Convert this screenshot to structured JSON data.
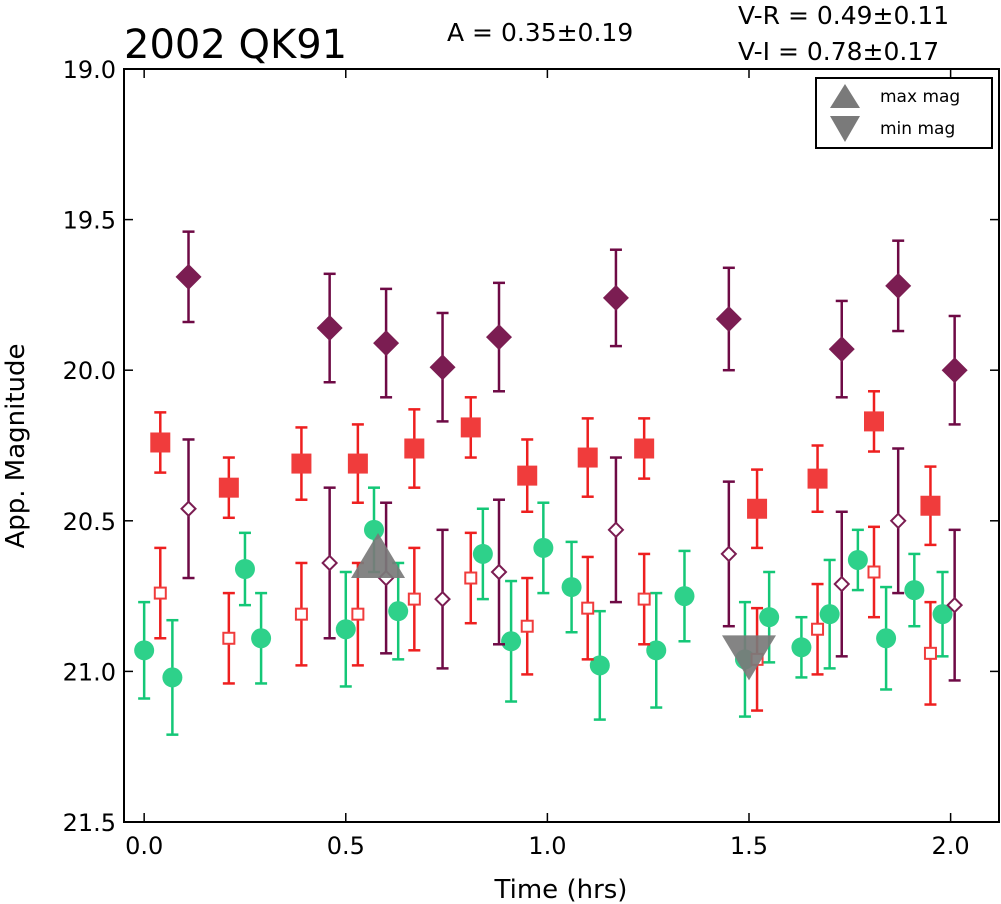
{
  "chart_data": {
    "type": "scatter",
    "title": "2002 QK91",
    "stats": {
      "amplitude": "A  = 0.35±0.19",
      "v_r": "V-R = 0.49±0.11",
      "v_i": "V-I  = 0.78±0.17"
    },
    "xlabel": "Time (hrs)",
    "ylabel": "App. Magnitude",
    "xlim": [
      -0.05,
      2.12
    ],
    "ylim": [
      21.5,
      19.0
    ],
    "y_inverted": true,
    "xticks": [
      "0.0",
      "0.5",
      "1.0",
      "1.5",
      "2.0"
    ],
    "xtick_values": [
      0.0,
      0.5,
      1.0,
      1.5,
      2.0
    ],
    "yticks": [
      "19.0",
      "19.5",
      "20.0",
      "20.5",
      "21.0",
      "21.5"
    ],
    "ytick_values": [
      19.0,
      19.5,
      20.0,
      20.5,
      21.0,
      21.5
    ],
    "legend": {
      "position": "top-right",
      "entries": [
        {
          "label": "max mag",
          "marker": "triangle-up"
        },
        {
          "label": "min mag",
          "marker": "triangle-down"
        }
      ]
    },
    "series": [
      {
        "marker": "diamond",
        "color": "#7b1d52",
        "err_color": "#6e0a45",
        "points": [
          {
            "x": 0.11,
            "y": 19.69,
            "err": 0.15
          },
          {
            "x": 0.46,
            "y": 19.86,
            "err": 0.18
          },
          {
            "x": 0.6,
            "y": 19.91,
            "err": 0.18
          },
          {
            "x": 0.74,
            "y": 19.99,
            "err": 0.18
          },
          {
            "x": 0.88,
            "y": 19.89,
            "err": 0.18
          },
          {
            "x": 1.17,
            "y": 19.76,
            "err": 0.16
          },
          {
            "x": 1.45,
            "y": 19.83,
            "err": 0.17
          },
          {
            "x": 1.73,
            "y": 19.93,
            "err": 0.16
          },
          {
            "x": 1.87,
            "y": 19.72,
            "err": 0.15
          },
          {
            "x": 2.01,
            "y": 20.0,
            "err": 0.18
          }
        ]
      },
      {
        "marker": "square",
        "color": "#f03c3c",
        "err_color": "#ee1f1f",
        "points": [
          {
            "x": 0.04,
            "y": 20.24,
            "err": 0.1
          },
          {
            "x": 0.21,
            "y": 20.39,
            "err": 0.1
          },
          {
            "x": 0.39,
            "y": 20.31,
            "err": 0.12
          },
          {
            "x": 0.53,
            "y": 20.31,
            "err": 0.13
          },
          {
            "x": 0.67,
            "y": 20.26,
            "err": 0.13
          },
          {
            "x": 0.81,
            "y": 20.19,
            "err": 0.1
          },
          {
            "x": 0.95,
            "y": 20.35,
            "err": 0.12
          },
          {
            "x": 1.1,
            "y": 20.29,
            "err": 0.13
          },
          {
            "x": 1.24,
            "y": 20.26,
            "err": 0.1
          },
          {
            "x": 1.52,
            "y": 20.46,
            "err": 0.13
          },
          {
            "x": 1.67,
            "y": 20.36,
            "err": 0.11
          },
          {
            "x": 1.81,
            "y": 20.17,
            "err": 0.1
          },
          {
            "x": 1.95,
            "y": 20.45,
            "err": 0.13
          }
        ]
      },
      {
        "marker": "diamond-open",
        "color": "#7b1d52",
        "err_color": "#6e0a45",
        "points": [
          {
            "x": 0.11,
            "y": 20.46,
            "err": 0.23
          },
          {
            "x": 0.46,
            "y": 20.64,
            "err": 0.25
          },
          {
            "x": 0.6,
            "y": 20.69,
            "err": 0.25
          },
          {
            "x": 0.74,
            "y": 20.76,
            "err": 0.23
          },
          {
            "x": 0.88,
            "y": 20.67,
            "err": 0.24
          },
          {
            "x": 1.17,
            "y": 20.53,
            "err": 0.24
          },
          {
            "x": 1.45,
            "y": 20.61,
            "err": 0.24
          },
          {
            "x": 1.73,
            "y": 20.71,
            "err": 0.24
          },
          {
            "x": 1.87,
            "y": 20.5,
            "err": 0.24
          },
          {
            "x": 2.01,
            "y": 20.78,
            "err": 0.25
          }
        ]
      },
      {
        "marker": "square-open",
        "color": "#f03c3c",
        "err_color": "#ee1f1f",
        "points": [
          {
            "x": 0.04,
            "y": 20.74,
            "err": 0.15
          },
          {
            "x": 0.21,
            "y": 20.89,
            "err": 0.15
          },
          {
            "x": 0.39,
            "y": 20.81,
            "err": 0.17
          },
          {
            "x": 0.53,
            "y": 20.81,
            "err": 0.17
          },
          {
            "x": 0.67,
            "y": 20.76,
            "err": 0.17
          },
          {
            "x": 0.81,
            "y": 20.69,
            "err": 0.15
          },
          {
            "x": 0.95,
            "y": 20.85,
            "err": 0.16
          },
          {
            "x": 1.1,
            "y": 20.79,
            "err": 0.17
          },
          {
            "x": 1.24,
            "y": 20.76,
            "err": 0.15
          },
          {
            "x": 1.52,
            "y": 20.96,
            "err": 0.17
          },
          {
            "x": 1.67,
            "y": 20.86,
            "err": 0.15
          },
          {
            "x": 1.81,
            "y": 20.67,
            "err": 0.15
          },
          {
            "x": 1.95,
            "y": 20.94,
            "err": 0.17
          }
        ]
      },
      {
        "marker": "circle",
        "color": "#2ed18a",
        "err_color": "#14c777",
        "points": [
          {
            "x": 0.0,
            "y": 20.93,
            "err": 0.16
          },
          {
            "x": 0.07,
            "y": 21.02,
            "err": 0.19
          },
          {
            "x": 0.25,
            "y": 20.66,
            "err": 0.12
          },
          {
            "x": 0.29,
            "y": 20.89,
            "err": 0.15
          },
          {
            "x": 0.5,
            "y": 20.86,
            "err": 0.19
          },
          {
            "x": 0.57,
            "y": 20.53,
            "err": 0.14
          },
          {
            "x": 0.63,
            "y": 20.8,
            "err": 0.16
          },
          {
            "x": 0.84,
            "y": 20.61,
            "err": 0.15
          },
          {
            "x": 0.91,
            "y": 20.9,
            "err": 0.2
          },
          {
            "x": 0.99,
            "y": 20.59,
            "err": 0.15
          },
          {
            "x": 1.06,
            "y": 20.72,
            "err": 0.15
          },
          {
            "x": 1.13,
            "y": 20.98,
            "err": 0.18
          },
          {
            "x": 1.27,
            "y": 20.93,
            "err": 0.19
          },
          {
            "x": 1.34,
            "y": 20.75,
            "err": 0.15
          },
          {
            "x": 1.49,
            "y": 20.96,
            "err": 0.19
          },
          {
            "x": 1.55,
            "y": 20.82,
            "err": 0.15
          },
          {
            "x": 1.63,
            "y": 20.92,
            "err": 0.1
          },
          {
            "x": 1.7,
            "y": 20.81,
            "err": 0.18
          },
          {
            "x": 1.77,
            "y": 20.63,
            "err": 0.1
          },
          {
            "x": 1.84,
            "y": 20.89,
            "err": 0.17
          },
          {
            "x": 1.91,
            "y": 20.73,
            "err": 0.12
          },
          {
            "x": 1.98,
            "y": 20.81,
            "err": 0.14
          }
        ]
      }
    ],
    "markers": [
      {
        "name": "max mag",
        "marker": "triangle-up",
        "x": 0.58,
        "y": 20.64,
        "color": "#7a7a7a"
      },
      {
        "name": "min mag",
        "marker": "triangle-down",
        "x": 1.5,
        "y": 20.93,
        "color": "#7a7a7a"
      }
    ]
  }
}
